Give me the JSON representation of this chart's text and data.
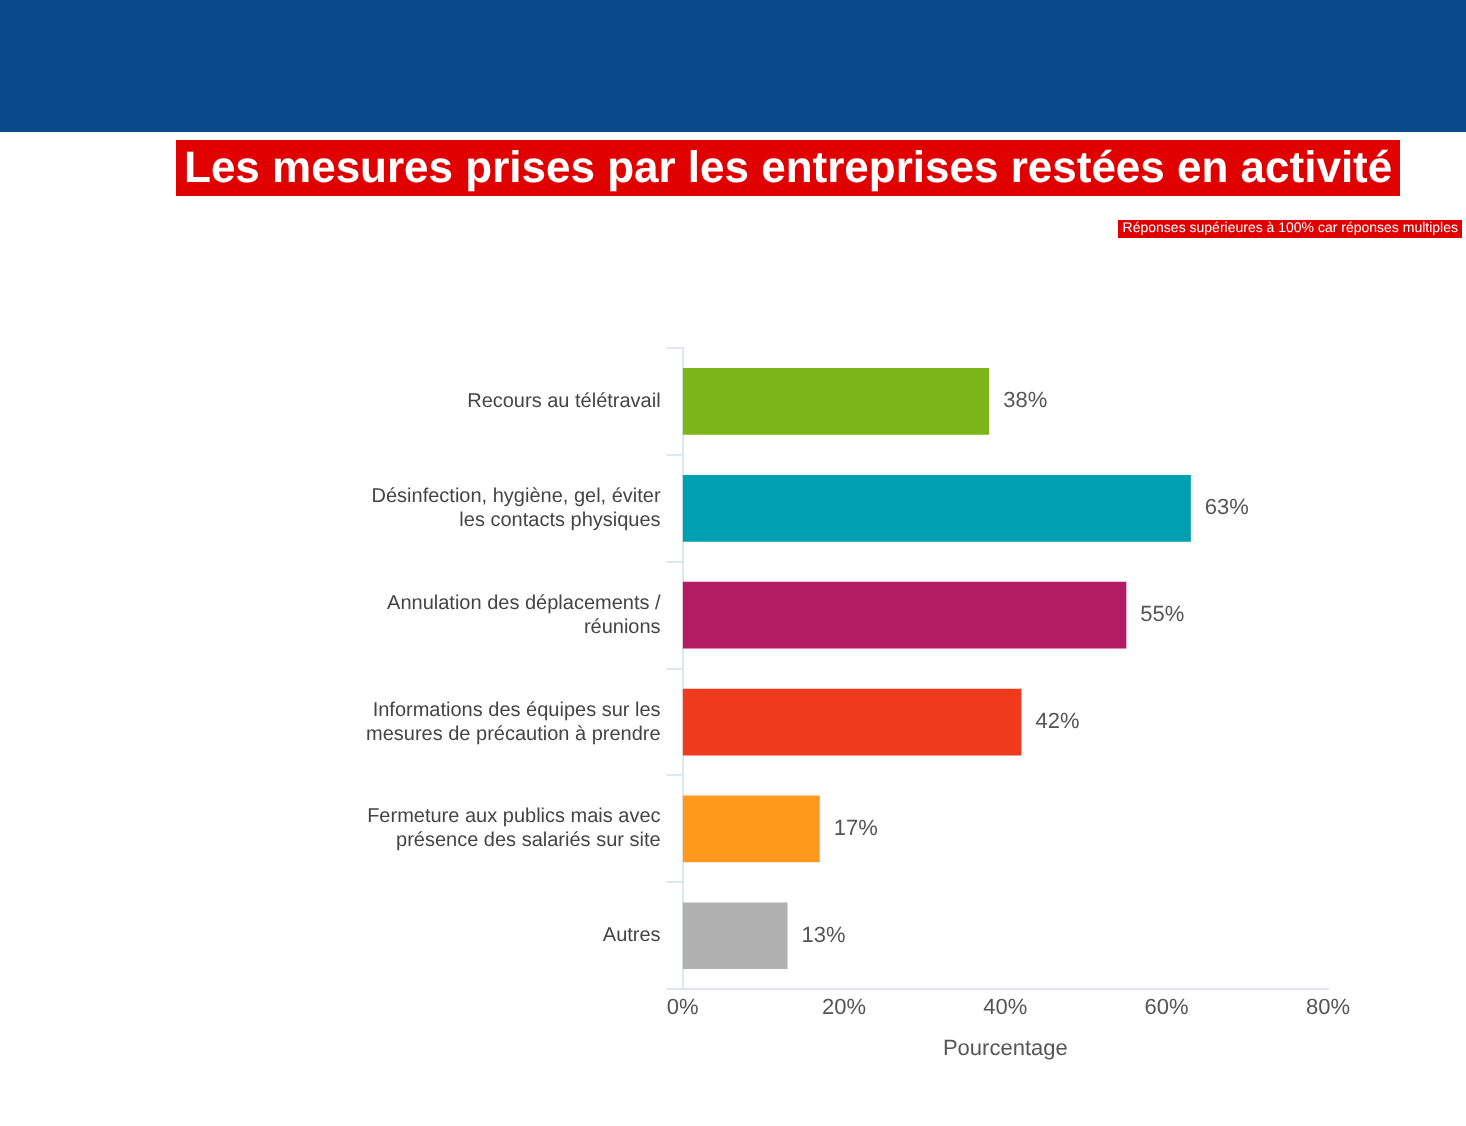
{
  "chart_data": {
    "type": "bar",
    "orientation": "horizontal",
    "title": "Les mesures prises par les entreprises restées en activité",
    "annotations": [
      "Réponses supérieures à 100% car réponses multiples"
    ],
    "xlabel": "Pourcentage",
    "categories": [
      "Recours au télétravail",
      "Désinfection, hygiène, gel, éviter les contacts physiques",
      "Annulation des déplacements / réunions",
      "Informations des équipes sur les mesures de précaution à prendre",
      "Fermeture aux publics mais avec présence des salariés sur site",
      "Autres"
    ],
    "values": [
      38,
      63,
      55,
      42,
      17,
      13
    ],
    "colors": [
      "#7cb518",
      "#00a0b0",
      "#b31b62",
      "#f03a1e",
      "#ff9a1f",
      "#b0b0b0"
    ],
    "value_labels": [
      "38%",
      "63%",
      "55%",
      "42%",
      "17%",
      "13%"
    ],
    "xlim": [
      0,
      80
    ],
    "xticks": [
      {
        "value": 0,
        "label": "0%"
      },
      {
        "value": 20,
        "label": "20%"
      },
      {
        "value": 40,
        "label": "40%"
      },
      {
        "value": 60,
        "label": "60%"
      },
      {
        "value": 80,
        "label": "80%"
      }
    ],
    "grid": false,
    "legend": false
  }
}
